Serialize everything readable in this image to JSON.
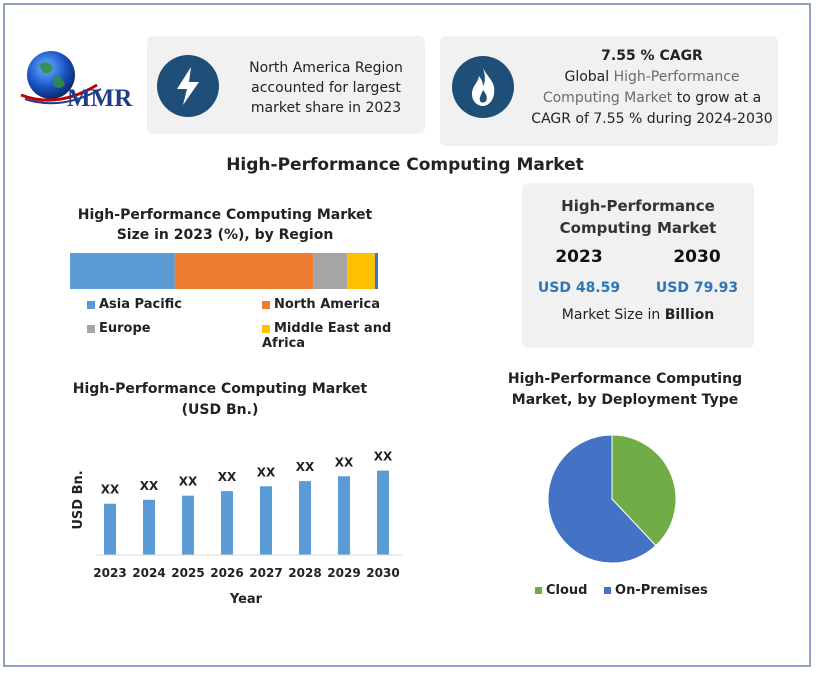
{
  "logo": {
    "text": "MMR"
  },
  "banner_left": {
    "text_lines": [
      "North America Region",
      "accounted for largest",
      "market share in 2023"
    ]
  },
  "banner_right": {
    "title": "7.55 % CAGR",
    "line1_prefix": "Global ",
    "line1_highlight": "High-Performance",
    "line2_highlight": "Computing Market",
    "line2_suffix": " to grow at a",
    "line3": "CAGR of 7.55 % during 2024-2030"
  },
  "main_title": "High-Performance Computing Market",
  "market_size": {
    "title_lines": [
      "High-Performance",
      "Computing Market"
    ],
    "years": [
      "2023",
      "2030"
    ],
    "values": [
      "USD 48.59",
      "USD 79.93"
    ],
    "unit_prefix": "Market Size in ",
    "unit_bold": "Billion"
  },
  "colors": {
    "accent": "#1f4e79",
    "value_blue": "#2e75b6",
    "highlight_text": "#6b6b6b"
  },
  "chart_data": [
    {
      "type": "bar",
      "stacked": true,
      "orientation": "horizontal",
      "title_lines": [
        "High-Performance Computing Market",
        "Size in 2023 (%), by Region"
      ],
      "series": [
        {
          "name": "Asia Pacific",
          "value": 34,
          "color": "#5b9bd5"
        },
        {
          "name": "North America",
          "value": 45,
          "color": "#ed7d31"
        },
        {
          "name": "Europe",
          "value": 11,
          "color": "#a5a5a5"
        },
        {
          "name": "Middle East and Africa",
          "value": 9,
          "color": "#ffc000"
        },
        {
          "name": "",
          "value": 1,
          "color": "#4472c4"
        }
      ],
      "legend_position": "bottom"
    },
    {
      "type": "bar",
      "title_lines": [
        "High-Performance Computing Market",
        "(USD Bn.)"
      ],
      "categories": [
        "2023",
        "2024",
        "2025",
        "2026",
        "2027",
        "2028",
        "2029",
        "2030"
      ],
      "values": [
        48.59,
        52.3,
        56.2,
        60.5,
        65.1,
        70.0,
        74.6,
        79.93
      ],
      "data_labels": [
        "XX",
        "XX",
        "XX",
        "XX",
        "XX",
        "XX",
        "XX",
        "XX"
      ],
      "xlabel": "Year",
      "ylabel": "USD Bn.",
      "ylim": [
        0,
        90
      ],
      "color": "#5b9bd5",
      "grid": false
    },
    {
      "type": "pie",
      "title_lines": [
        "High-Performance Computing",
        "Market, by Deployment Type"
      ],
      "slices": [
        {
          "name": "Cloud",
          "value": 38,
          "color": "#70ad47"
        },
        {
          "name": "On-Premises",
          "value": 62,
          "color": "#4472c4"
        }
      ],
      "legend_position": "bottom"
    }
  ]
}
